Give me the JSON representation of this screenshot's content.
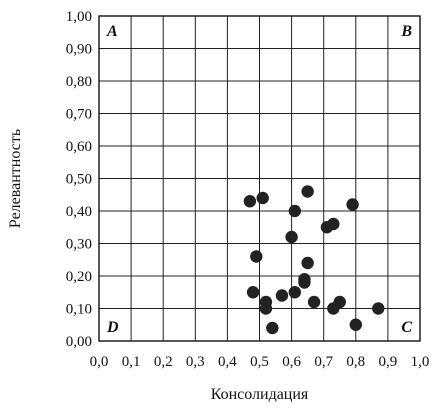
{
  "chart_data": {
    "type": "scatter",
    "xlabel": "Консолидация",
    "ylabel": "Релевантность",
    "xlim": [
      0,
      1
    ],
    "ylim": [
      0,
      1
    ],
    "x_ticks": [
      "0,0",
      "0,1",
      "0,2",
      "0,3",
      "0,4",
      "0,5",
      "0,6",
      "0,7",
      "0,8",
      "0,9",
      "1,0"
    ],
    "y_ticks": [
      "0,00",
      "0,10",
      "0,20",
      "0,30",
      "0,40",
      "0,50",
      "0,60",
      "0,70",
      "0,80",
      "0,90",
      "1,00"
    ],
    "grid": true,
    "quadrant_labels": {
      "top_left": "A",
      "top_right": "B",
      "bottom_right": "C",
      "bottom_left": "D"
    },
    "points": [
      {
        "x": 0.47,
        "y": 0.43
      },
      {
        "x": 0.51,
        "y": 0.44
      },
      {
        "x": 0.65,
        "y": 0.46
      },
      {
        "x": 0.61,
        "y": 0.4
      },
      {
        "x": 0.79,
        "y": 0.42
      },
      {
        "x": 0.71,
        "y": 0.35
      },
      {
        "x": 0.73,
        "y": 0.36
      },
      {
        "x": 0.6,
        "y": 0.32
      },
      {
        "x": 0.49,
        "y": 0.26
      },
      {
        "x": 0.65,
        "y": 0.24
      },
      {
        "x": 0.64,
        "y": 0.19
      },
      {
        "x": 0.64,
        "y": 0.18
      },
      {
        "x": 0.48,
        "y": 0.15
      },
      {
        "x": 0.57,
        "y": 0.14
      },
      {
        "x": 0.61,
        "y": 0.15
      },
      {
        "x": 0.67,
        "y": 0.12
      },
      {
        "x": 0.52,
        "y": 0.12
      },
      {
        "x": 0.52,
        "y": 0.1
      },
      {
        "x": 0.75,
        "y": 0.12
      },
      {
        "x": 0.73,
        "y": 0.1
      },
      {
        "x": 0.87,
        "y": 0.1
      },
      {
        "x": 0.54,
        "y": 0.04
      },
      {
        "x": 0.8,
        "y": 0.05
      }
    ]
  }
}
